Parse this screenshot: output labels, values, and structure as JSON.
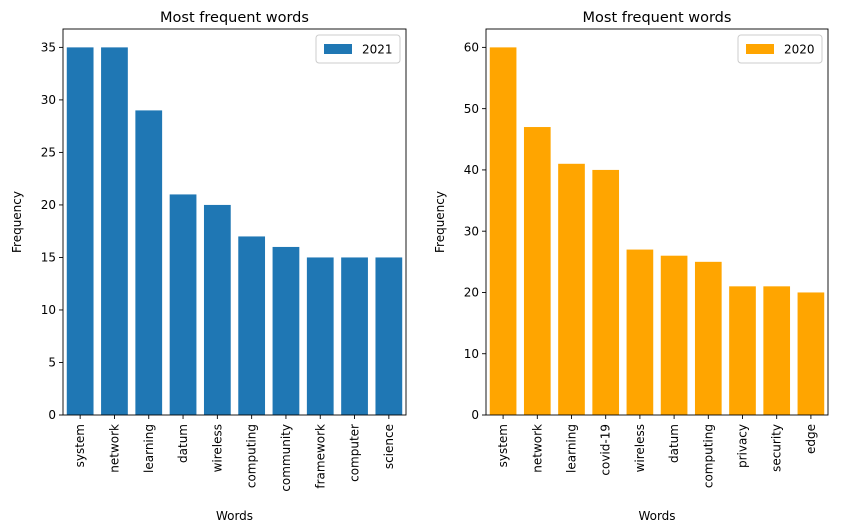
{
  "chart_data": [
    {
      "type": "bar",
      "title": "Most frequent words",
      "xlabel": "Words",
      "ylabel": "Frequency",
      "categories": [
        "system",
        "network",
        "learning",
        "datum",
        "wireless",
        "computing",
        "community",
        "framework",
        "computer",
        "science"
      ],
      "series": [
        {
          "name": "2021",
          "values": [
            35,
            35,
            29,
            21,
            20,
            17,
            16,
            15,
            15,
            15
          ]
        }
      ],
      "ylim": [
        0,
        36.75
      ],
      "yticks": [
        0,
        5,
        10,
        15,
        20,
        25,
        30,
        35
      ],
      "color": "#1f77b4",
      "grid": false,
      "legend": "top-right"
    },
    {
      "type": "bar",
      "title": "Most frequent words",
      "xlabel": "Words",
      "ylabel": "Frequency",
      "categories": [
        "system",
        "network",
        "learning",
        "covid-19",
        "wireless",
        "datum",
        "computing",
        "privacy",
        "security",
        "edge"
      ],
      "series": [
        {
          "name": "2020",
          "values": [
            60,
            47,
            41,
            40,
            27,
            26,
            25,
            21,
            21,
            20
          ]
        }
      ],
      "ylim": [
        0,
        63
      ],
      "yticks": [
        0,
        10,
        20,
        30,
        40,
        50,
        60
      ],
      "color": "#ffa500",
      "grid": false,
      "legend": "top-right"
    }
  ]
}
